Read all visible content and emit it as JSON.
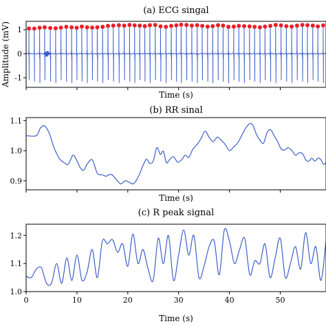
{
  "chart_data": [
    {
      "type": "line",
      "title": "(a) ECG singal",
      "xlabel": "Time (s)",
      "ylabel": "Amplitude (mV)",
      "xlim": [
        0,
        59
      ],
      "ylim": [
        -1.4,
        1.35
      ],
      "yticks": [
        -1,
        0,
        1
      ],
      "x_tick_labels_visible": false,
      "series": [
        {
          "kind": "ecg-trace",
          "color": "#3b5fc8",
          "beat_times": [
            0.55,
            1.6,
            2.65,
            3.65,
            4.75,
            5.8,
            6.85,
            7.9,
            8.95,
            9.95,
            10.95,
            12.0,
            13.0,
            14.0,
            15.05,
            16.1,
            17.15,
            18.25,
            19.3,
            20.35,
            21.35,
            22.35,
            23.35,
            24.35,
            25.4,
            26.45,
            27.5,
            28.55,
            29.55,
            30.5,
            31.55,
            32.6,
            33.65,
            34.65,
            35.7,
            36.7,
            37.75,
            38.75,
            39.8,
            40.85,
            41.85,
            42.9,
            43.95,
            44.95,
            46.0,
            47.0,
            48.05,
            49.1,
            50.15,
            51.2,
            52.25,
            53.3,
            54.35,
            55.35,
            56.4,
            57.4,
            58.45
          ]
        },
        {
          "kind": "r-peak-markers",
          "color": "#e8202a",
          "values": [
            1.05,
            1.05,
            1.08,
            1.1,
            1.07,
            1.06,
            1.09,
            1.12,
            1.1,
            1.08,
            1.13,
            1.1,
            1.09,
            1.1,
            1.12,
            1.16,
            1.17,
            1.19,
            1.17,
            1.2,
            1.18,
            1.17,
            1.15,
            1.19,
            1.2,
            1.14,
            1.12,
            1.16,
            1.18,
            1.21,
            1.2,
            1.17,
            1.19,
            1.16,
            1.13,
            1.15,
            1.19,
            1.17,
            1.12,
            1.13,
            1.16,
            1.15,
            1.14,
            1.12,
            1.1,
            1.13,
            1.16,
            1.2,
            1.18,
            1.15,
            1.13,
            1.17,
            1.2,
            1.19,
            1.17,
            1.14,
            1.18
          ]
        }
      ]
    },
    {
      "type": "line",
      "title": "(b) RR sinal",
      "xlabel": "Time (s)",
      "xlim": [
        0,
        59
      ],
      "ylim": [
        0.87,
        1.11
      ],
      "yticks": [
        0.9,
        1.0,
        1.1
      ],
      "ytick_labels": [
        "0.9",
        "1.0",
        "1.1"
      ],
      "x_tick_labels_visible": false,
      "series": [
        {
          "color": "#3b5fc8",
          "x": [
            0,
            2,
            2.8,
            3.6,
            4.5,
            5.5,
            6.5,
            7.5,
            8.3,
            9.2,
            9.9,
            10.6,
            11.3,
            12,
            13,
            14,
            15,
            15.7,
            16.3,
            16.9,
            17.7,
            18.6,
            19.5,
            20.3,
            21.1,
            21.8,
            22.5,
            23.1,
            23.7,
            24.3,
            25,
            25.7,
            26.4,
            27,
            27.6,
            28.2,
            29,
            29.8,
            30.6,
            31.3,
            32,
            32.8,
            33.6,
            34.4,
            35.2,
            36,
            36.8,
            37.6,
            38.4,
            39.2,
            40,
            40.8,
            41.6,
            42.4,
            43.2,
            44,
            44.6,
            45.3,
            46,
            46.7,
            47.4,
            48.1,
            48.8,
            49.5,
            50.2,
            50.9,
            51.6,
            52.3,
            53,
            53.7,
            54.4,
            55,
            55.6,
            56.2,
            56.8,
            57.4,
            58,
            58.5,
            59
          ],
          "y": [
            1.05,
            1.05,
            1.075,
            1.083,
            1.06,
            1.01,
            0.975,
            0.96,
            0.955,
            0.985,
            0.97,
            0.945,
            0.935,
            0.955,
            0.97,
            0.925,
            0.92,
            0.915,
            0.92,
            0.92,
            0.905,
            0.89,
            0.9,
            0.895,
            0.89,
            0.905,
            0.93,
            0.955,
            0.972,
            0.958,
            0.965,
            1.01,
            0.988,
            0.998,
            0.96,
            0.97,
            0.98,
            0.962,
            0.97,
            0.985,
            0.978,
            1.005,
            1.02,
            1.04,
            1.065,
            1.045,
            1.03,
            1.045,
            1.035,
            1.02,
            1.0,
            1.012,
            1.025,
            1.05,
            1.075,
            1.09,
            1.085,
            1.055,
            1.035,
            1.025,
            1.06,
            1.07,
            1.05,
            1.03,
            1.005,
            1.003,
            1.01,
            1.0,
            0.985,
            0.993,
            0.99,
            0.97,
            0.965,
            0.975,
            0.965,
            0.975,
            0.97,
            0.955,
            0.96
          ]
        }
      ]
    },
    {
      "type": "line",
      "title": "(c) R peak signal",
      "xlabel": "Time (s)",
      "xlim": [
        0,
        59
      ],
      "ylim": [
        1.0,
        1.24
      ],
      "xticks": [
        0,
        10,
        20,
        30,
        40,
        50
      ],
      "xtick_labels": [
        "0",
        "10",
        "20",
        "30",
        "40",
        "50"
      ],
      "yticks": [
        1.0,
        1.1,
        1.2
      ],
      "ytick_labels": [
        "1.0",
        "1.1",
        "1.2"
      ],
      "series": [
        {
          "color": "#3b5fc8",
          "x": [
            0,
            1,
            2,
            3,
            4,
            5,
            6,
            7,
            8,
            9,
            10,
            11,
            12,
            13,
            14,
            15,
            16,
            17,
            18,
            19,
            20,
            21,
            22,
            23,
            24,
            25,
            26,
            27,
            28,
            29,
            30,
            31,
            32,
            33,
            34,
            35,
            36,
            37,
            38,
            39,
            40,
            41,
            42,
            43,
            44,
            45,
            46,
            47,
            48,
            49,
            50,
            51,
            52,
            53,
            54,
            55,
            56,
            57,
            58,
            59
          ],
          "y": [
            1.055,
            1.05,
            1.08,
            1.085,
            1.03,
            1.03,
            1.1,
            1.03,
            1.12,
            1.04,
            1.13,
            1.04,
            1.07,
            1.15,
            1.05,
            1.18,
            1.17,
            1.185,
            1.14,
            1.17,
            1.09,
            1.205,
            1.1,
            1.15,
            1.08,
            1.04,
            1.19,
            1.1,
            1.2,
            1.04,
            1.13,
            1.22,
            1.13,
            1.2,
            1.05,
            1.09,
            1.16,
            1.18,
            1.06,
            1.22,
            1.18,
            1.1,
            1.15,
            1.19,
            1.06,
            1.11,
            1.1,
            1.17,
            1.05,
            1.12,
            1.19,
            1.05,
            1.1,
            1.16,
            1.08,
            1.21,
            1.1,
            1.16,
            1.04,
            1.18
          ]
        }
      ]
    }
  ]
}
